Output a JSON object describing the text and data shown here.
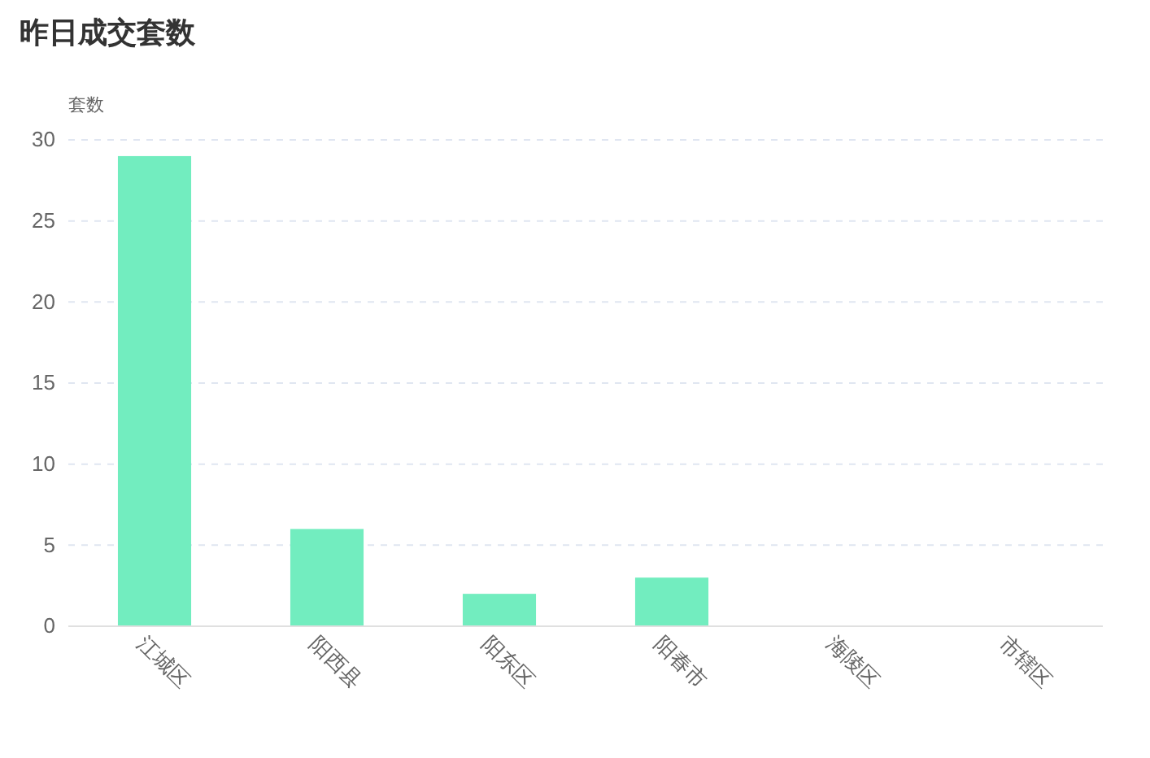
{
  "chart_data": {
    "type": "bar",
    "title": "昨日成交套数",
    "ylabel": "套数",
    "categories": [
      "江城区",
      "阳西县",
      "阳东区",
      "阳春市",
      "海陵区",
      "市辖区"
    ],
    "values": [
      29,
      6,
      2,
      3,
      0,
      0
    ],
    "color": "#72edbf",
    "ylim": [
      0,
      30
    ],
    "yticks": [
      0,
      5,
      10,
      15,
      20,
      25,
      30
    ],
    "grid": "y"
  }
}
